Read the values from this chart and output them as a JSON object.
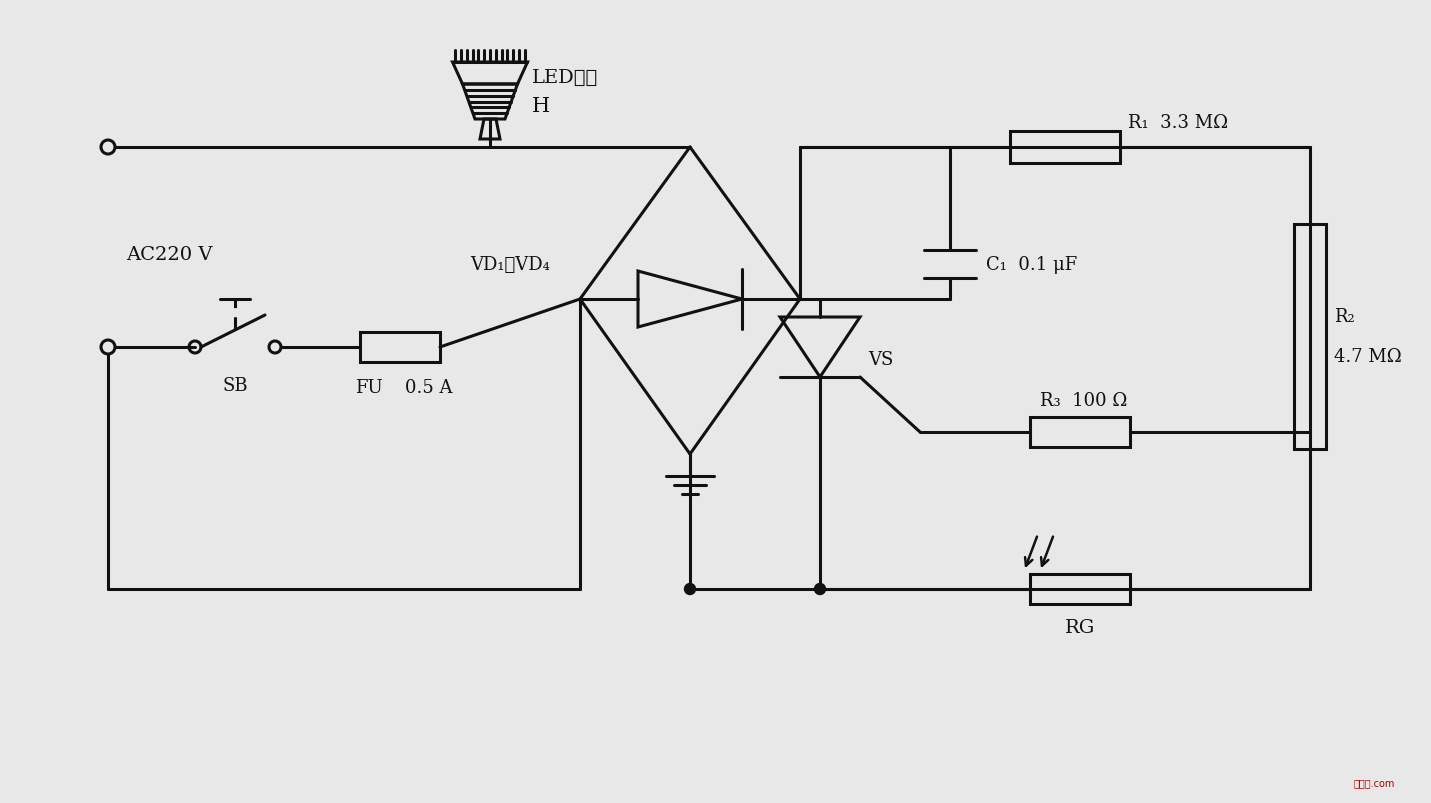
{
  "bg_color": "#e8e8e8",
  "lc": "#111111",
  "lw": 2.2,
  "labels": {
    "AC220V": "AC220 V",
    "SB": "SB",
    "FU": "FU",
    "FU_val": "0.5 A",
    "VD": "VD₁～VD₄",
    "VS": "VS",
    "R1": "R₁  3.3 MΩ",
    "C1": "C₁  0.1 μF",
    "R2": "R₂",
    "R2_val": "4.7 MΩ",
    "R3": "R₃  100 Ω",
    "RG": "RG",
    "H_label": "LED灯杯",
    "H_sub": "H"
  }
}
